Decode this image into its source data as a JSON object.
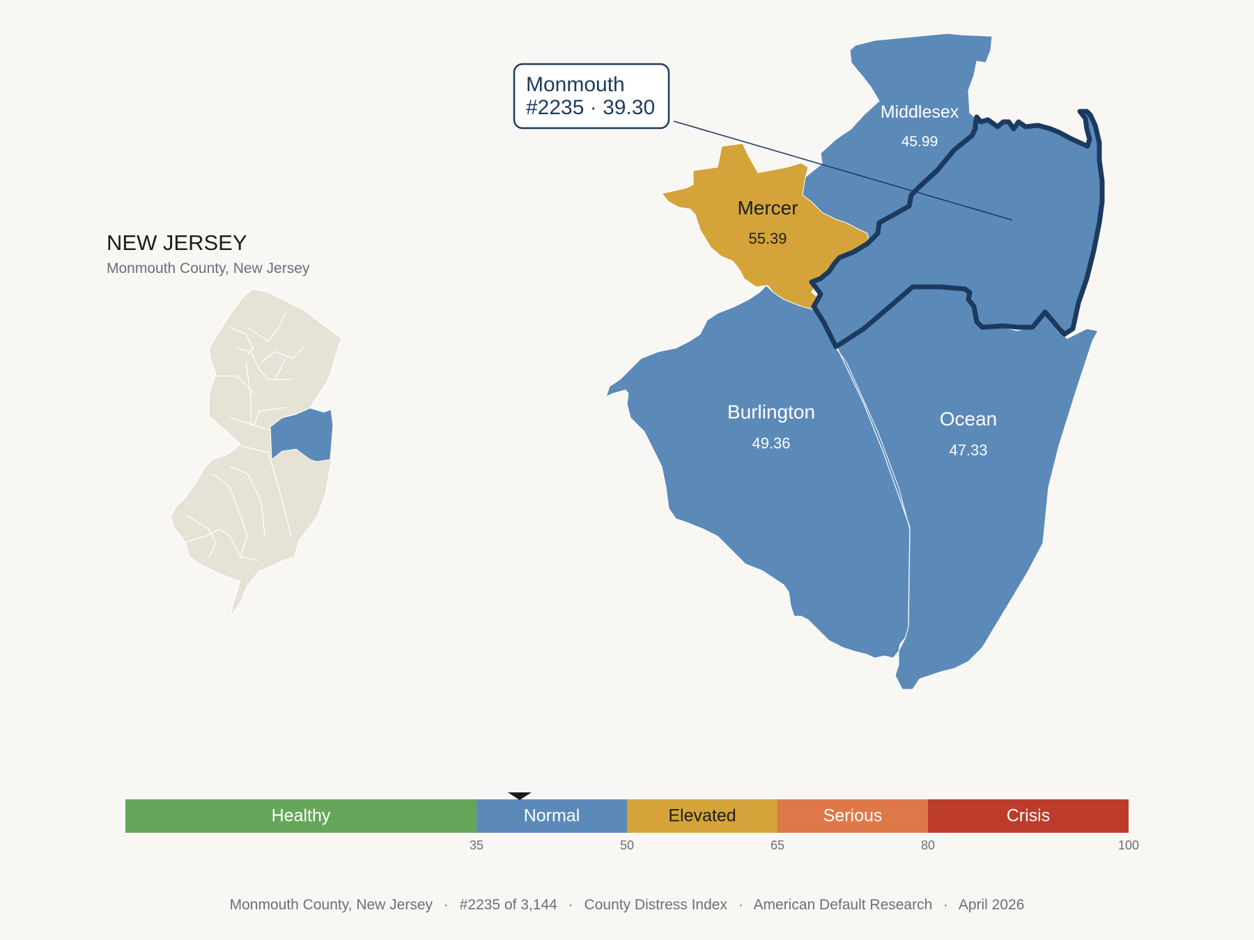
{
  "inset": {
    "title": "NEW JERSEY",
    "subtitle": "Monmouth County, New Jersey"
  },
  "callout": {
    "name": "Monmouth",
    "detail": "#2235 · 39.30"
  },
  "colors": {
    "background": "#f8f7f4",
    "normal": "#5b8ab9",
    "elevated": "#d4a43a",
    "healthy": "#66a65a",
    "serious": "#de7848",
    "crisis": "#bc3c2c",
    "focus_outline": "#1c3a5e",
    "inset_land": "#e7e2d6"
  },
  "counties": [
    {
      "name": "Middlesex",
      "value": "45.99",
      "category": "Normal"
    },
    {
      "name": "Mercer",
      "value": "55.39",
      "category": "Elevated"
    },
    {
      "name": "Burlington",
      "value": "49.36",
      "category": "Normal"
    },
    {
      "name": "Ocean",
      "value": "47.33",
      "category": "Normal"
    },
    {
      "name": "Monmouth",
      "value": "39.30",
      "category": "Normal",
      "rank": "#2235",
      "focus": true
    }
  ],
  "scale": {
    "min": 0,
    "max": 100,
    "marker_value": 39.3,
    "bands": [
      {
        "label": "Healthy",
        "from": 0,
        "to": 35,
        "color": "#66a65a",
        "text_color": "#ffffff"
      },
      {
        "label": "Normal",
        "from": 35,
        "to": 50,
        "color": "#5b8ab9",
        "text_color": "#ffffff"
      },
      {
        "label": "Elevated",
        "from": 50,
        "to": 65,
        "color": "#d4a43a",
        "text_color": "#1d1d1d"
      },
      {
        "label": "Serious",
        "from": 65,
        "to": 80,
        "color": "#de7848",
        "text_color": "#ffffff"
      },
      {
        "label": "Crisis",
        "from": 80,
        "to": 100,
        "color": "#bc3c2c",
        "text_color": "#ffffff"
      }
    ],
    "ticks": [
      "35",
      "50",
      "65",
      "80",
      "100"
    ]
  },
  "footer": {
    "county": "Monmouth County, New Jersey",
    "rank": "#2235 of 3,144",
    "index": "County Distress Index",
    "source": "American Default Research",
    "date": "April 2026",
    "separator": "·"
  }
}
